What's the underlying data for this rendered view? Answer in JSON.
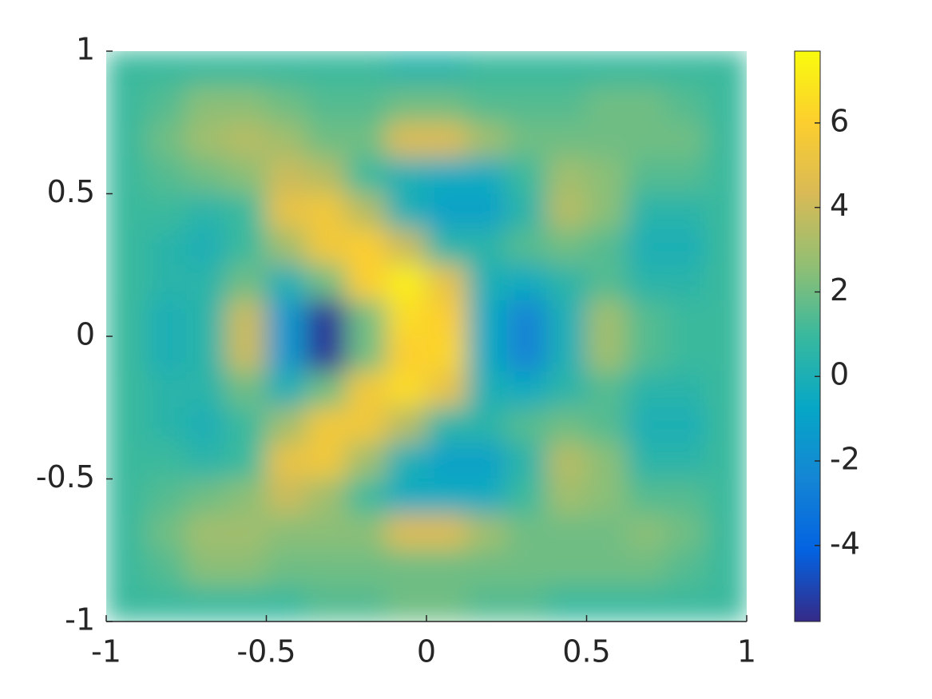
{
  "chart_data": {
    "type": "heatmap",
    "xlim": [
      -1,
      1
    ],
    "ylim": [
      -1,
      1
    ],
    "xticks": [
      -1,
      -0.5,
      0,
      0.5,
      1
    ],
    "yticks": [
      -1,
      -0.5,
      0,
      0.5,
      1
    ],
    "clim": [
      -5.8,
      7.7
    ],
    "colorbar_ticks": [
      -4,
      -2,
      0,
      2,
      4,
      6
    ],
    "colormap": [
      "#352a87",
      "#0363e1",
      "#1485d4",
      "#06a7c6",
      "#38b99e",
      "#92bf73",
      "#d9ba56",
      "#fcce2e",
      "#f9fb0e"
    ],
    "z": [
      [
        1,
        1,
        1,
        1,
        1,
        1,
        1,
        0.5,
        0.5,
        1,
        1,
        1,
        1,
        1,
        1,
        1
      ],
      [
        1,
        1.5,
        2.5,
        2.5,
        2,
        1.5,
        1.5,
        2,
        2,
        1.5,
        1.5,
        1.5,
        2,
        2,
        1.5,
        1
      ],
      [
        1,
        2,
        3,
        3.5,
        3,
        2,
        2,
        4.5,
        4.5,
        3,
        2,
        2,
        2,
        2,
        2,
        1
      ],
      [
        1,
        1.5,
        2,
        2.5,
        4,
        3.5,
        1,
        0,
        -0.5,
        -0.5,
        1,
        3,
        2.5,
        1.5,
        1.5,
        1
      ],
      [
        1,
        1,
        0.5,
        1,
        5,
        5.5,
        3.5,
        0,
        -1,
        -1,
        0.5,
        3.5,
        2.5,
        0.5,
        0.5,
        1
      ],
      [
        1,
        0.5,
        0,
        1,
        3,
        5.5,
        6,
        4,
        0.5,
        0.5,
        1.5,
        2,
        1.5,
        0,
        0,
        1
      ],
      [
        1,
        0.5,
        0.5,
        2,
        0,
        2,
        6,
        7.2,
        5,
        0,
        -0.5,
        0.5,
        1.5,
        0.5,
        0.5,
        1
      ],
      [
        1,
        0,
        0.5,
        4,
        -1.5,
        -5.5,
        2,
        6.5,
        6,
        -0.5,
        -2.5,
        0,
        3,
        1.5,
        1,
        1
      ],
      [
        1,
        0,
        0.5,
        4,
        -1.5,
        -5.5,
        2,
        6,
        6.3,
        -0.5,
        -2.5,
        0,
        3,
        1.5,
        1,
        1
      ],
      [
        1,
        0.5,
        0.5,
        2,
        0,
        2,
        5.5,
        6.5,
        5,
        0,
        -0.5,
        0.5,
        1.5,
        0.5,
        0.5,
        1
      ],
      [
        1,
        0.5,
        0,
        1,
        3,
        5.5,
        5.5,
        3.5,
        0.5,
        0.5,
        1.5,
        2,
        1.5,
        0,
        0,
        1
      ],
      [
        1,
        1,
        0.5,
        1,
        5,
        5.5,
        3,
        0,
        -1,
        -1,
        0.5,
        3.5,
        2.5,
        0.5,
        0.5,
        1
      ],
      [
        1,
        1.5,
        2,
        2.5,
        4,
        3,
        1,
        -0.5,
        -0.5,
        -0.5,
        1,
        3,
        2.5,
        1.5,
        1.5,
        1
      ],
      [
        1,
        2,
        3,
        3,
        2.5,
        2.5,
        2.5,
        4.5,
        4.5,
        3,
        2,
        2,
        2,
        2.5,
        2,
        1
      ],
      [
        1,
        1.5,
        2.5,
        2.5,
        2,
        2,
        2,
        2,
        2,
        2,
        2,
        2,
        2,
        2,
        1.5,
        1
      ],
      [
        1,
        1,
        1,
        1,
        1,
        1.5,
        1.5,
        2,
        2,
        1.5,
        1.5,
        1,
        1,
        1,
        1,
        1
      ]
    ]
  }
}
